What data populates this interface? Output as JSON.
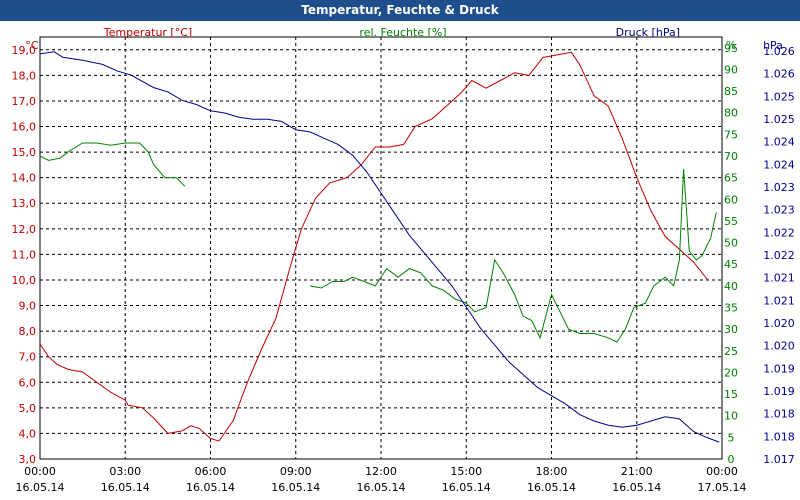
{
  "window": {
    "title": "Temperatur, Feuchte & Druck"
  },
  "chart_data": {
    "type": "line",
    "title": "Temperatur, Feuchte & Druck",
    "x_ticks": [
      {
        "time": "00:00",
        "date": "16.05.14",
        "h": 0
      },
      {
        "time": "03:00",
        "date": "16.05.14",
        "h": 3
      },
      {
        "time": "06:00",
        "date": "16.05.14",
        "h": 6
      },
      {
        "time": "09:00",
        "date": "16.05.14",
        "h": 9
      },
      {
        "time": "12:00",
        "date": "16.05.14",
        "h": 12
      },
      {
        "time": "15:00",
        "date": "16.05.14",
        "h": 15
      },
      {
        "time": "18:00",
        "date": "16.05.14",
        "h": 18
      },
      {
        "time": "21:00",
        "date": "16.05.14",
        "h": 21
      },
      {
        "time": "00:00",
        "date": "17.05.14",
        "h": 24
      }
    ],
    "x_range": [
      0,
      24
    ],
    "axes": {
      "temperature": {
        "label": "Temperatur [°C]",
        "unit": "°C",
        "color": "#c00000",
        "range": [
          3.0,
          19.5
        ],
        "ticks": [
          "19,0",
          "18,0",
          "17,0",
          "16,0",
          "15,0",
          "14,0",
          "13,0",
          "12,0",
          "11,0",
          "10,0",
          "9,0",
          "8,0",
          "7,0",
          "6,0",
          "5,0",
          "4,0",
          "3,0"
        ]
      },
      "humidity": {
        "label": "rel. Feuchte [%]",
        "unit": "%",
        "color": "#008000",
        "range": [
          0,
          97.5
        ],
        "ticks": [
          "95",
          "90",
          "85",
          "80",
          "75",
          "70",
          "65",
          "60",
          "55",
          "50",
          "45",
          "40",
          "35",
          "30",
          "25",
          "20",
          "15",
          "10",
          "5",
          "0"
        ]
      },
      "pressure": {
        "label": "Druck [hPa]",
        "unit": "hPa",
        "color": "#00008b",
        "range": [
          1.0165,
          1.0265
        ],
        "ticks": [
          "1.026",
          "1.026",
          "1.025",
          "1.025",
          "1.024",
          "1.024",
          "1.023",
          "1.023",
          "1.022",
          "1.022",
          "1.021",
          "1.021",
          "1.020",
          "1.020",
          "1.019",
          "1.019",
          "1.018",
          "1.018",
          "1.017"
        ]
      }
    },
    "series": [
      {
        "name": "Temperatur",
        "axis": "temperature",
        "points": [
          [
            0,
            7.5
          ],
          [
            0.3,
            7.0
          ],
          [
            0.6,
            6.7
          ],
          [
            1.0,
            6.5
          ],
          [
            1.5,
            6.4
          ],
          [
            2.0,
            6.0
          ],
          [
            2.5,
            5.6
          ],
          [
            3.0,
            5.3
          ],
          [
            3.1,
            5.1
          ],
          [
            3.6,
            5.0
          ],
          [
            4.0,
            4.6
          ],
          [
            4.5,
            4.0
          ],
          [
            5.0,
            4.1
          ],
          [
            5.3,
            4.3
          ],
          [
            5.6,
            4.2
          ],
          [
            6.0,
            3.8
          ],
          [
            6.3,
            3.7
          ],
          [
            6.8,
            4.5
          ],
          [
            7.3,
            6.0
          ],
          [
            7.8,
            7.3
          ],
          [
            8.3,
            8.5
          ],
          [
            8.8,
            10.5
          ],
          [
            9.2,
            12.0
          ],
          [
            9.7,
            13.2
          ],
          [
            10.2,
            13.8
          ],
          [
            10.8,
            14.0
          ],
          [
            11.3,
            14.5
          ],
          [
            11.8,
            15.2
          ],
          [
            12.3,
            15.2
          ],
          [
            12.8,
            15.3
          ],
          [
            13.2,
            16.0
          ],
          [
            13.8,
            16.3
          ],
          [
            14.3,
            16.8
          ],
          [
            14.8,
            17.3
          ],
          [
            15.2,
            17.8
          ],
          [
            15.7,
            17.5
          ],
          [
            16.2,
            17.8
          ],
          [
            16.7,
            18.1
          ],
          [
            17.2,
            18.0
          ],
          [
            17.7,
            18.7
          ],
          [
            18.2,
            18.8
          ],
          [
            18.7,
            18.9
          ],
          [
            19.0,
            18.4
          ],
          [
            19.5,
            17.2
          ],
          [
            20.0,
            16.8
          ],
          [
            20.5,
            15.5
          ],
          [
            21.0,
            14.0
          ],
          [
            21.5,
            12.7
          ],
          [
            22.0,
            11.7
          ],
          [
            22.5,
            11.2
          ],
          [
            23.0,
            10.7
          ],
          [
            23.5,
            10.0
          ]
        ]
      },
      {
        "name": "rel. Feuchte",
        "axis": "humidity",
        "segments": [
          [
            [
              0,
              70
            ],
            [
              0.3,
              69
            ],
            [
              0.7,
              69.5
            ],
            [
              1.0,
              71
            ],
            [
              1.5,
              73
            ],
            [
              2.0,
              73
            ],
            [
              2.5,
              72.5
            ],
            [
              3.0,
              73
            ],
            [
              3.5,
              73
            ],
            [
              3.8,
              71
            ],
            [
              4.0,
              68
            ],
            [
              4.4,
              65
            ],
            [
              4.8,
              65
            ],
            [
              5.1,
              63
            ]
          ],
          [
            [
              9.5,
              40
            ],
            [
              9.9,
              39.5
            ],
            [
              10.3,
              41
            ],
            [
              10.7,
              41
            ],
            [
              11.0,
              42
            ],
            [
              11.4,
              41
            ],
            [
              11.8,
              40
            ],
            [
              12.2,
              44
            ],
            [
              12.6,
              42
            ],
            [
              13.0,
              44
            ],
            [
              13.4,
              43
            ],
            [
              13.8,
              40
            ],
            [
              14.2,
              39
            ],
            [
              14.6,
              37
            ],
            [
              15.0,
              36
            ],
            [
              15.3,
              34
            ],
            [
              15.7,
              35
            ],
            [
              16.0,
              46
            ],
            [
              16.3,
              43
            ],
            [
              16.7,
              38
            ],
            [
              17.0,
              33
            ],
            [
              17.3,
              32
            ],
            [
              17.6,
              28
            ],
            [
              18.0,
              38
            ],
            [
              18.3,
              34
            ],
            [
              18.6,
              30
            ],
            [
              19.0,
              29
            ],
            [
              19.5,
              29
            ],
            [
              20.0,
              28
            ],
            [
              20.3,
              27
            ],
            [
              20.6,
              30
            ],
            [
              20.9,
              35
            ],
            [
              21.3,
              36
            ],
            [
              21.6,
              40
            ],
            [
              22.0,
              42
            ],
            [
              22.3,
              40
            ],
            [
              22.5,
              46
            ],
            [
              22.65,
              67
            ],
            [
              22.85,
              48
            ],
            [
              23.1,
              46
            ],
            [
              23.3,
              47
            ],
            [
              23.6,
              51
            ],
            [
              23.8,
              57
            ]
          ]
        ]
      },
      {
        "name": "Druck",
        "axis": "pressure",
        "points": [
          [
            0,
            1.0261
          ],
          [
            0.5,
            1.02615
          ],
          [
            0.8,
            1.02602
          ],
          [
            1.5,
            1.02595
          ],
          [
            2.2,
            1.02585
          ],
          [
            2.7,
            1.0257
          ],
          [
            3.2,
            1.0256
          ],
          [
            3.6,
            1.02545
          ],
          [
            4.0,
            1.0253
          ],
          [
            4.5,
            1.0252
          ],
          [
            5.0,
            1.025
          ],
          [
            5.5,
            1.0249
          ],
          [
            6.0,
            1.02475
          ],
          [
            6.5,
            1.0247
          ],
          [
            7.0,
            1.0246
          ],
          [
            7.5,
            1.02455
          ],
          [
            8.0,
            1.02455
          ],
          [
            8.5,
            1.0245
          ],
          [
            9.0,
            1.0243
          ],
          [
            9.5,
            1.02425
          ],
          [
            10.0,
            1.0241
          ],
          [
            10.5,
            1.02395
          ],
          [
            11.0,
            1.0237
          ],
          [
            11.5,
            1.0233
          ],
          [
            12.0,
            1.0228
          ],
          [
            12.5,
            1.0223
          ],
          [
            13.0,
            1.0218
          ],
          [
            13.5,
            1.0214
          ],
          [
            14.0,
            1.021
          ],
          [
            14.5,
            1.0206
          ],
          [
            15.0,
            1.0201
          ],
          [
            15.5,
            1.0196
          ],
          [
            16.0,
            1.0192
          ],
          [
            16.5,
            1.0188
          ],
          [
            17.0,
            1.0185
          ],
          [
            17.5,
            1.0182
          ],
          [
            18.0,
            1.018
          ],
          [
            18.5,
            1.0178
          ],
          [
            19.0,
            1.01755
          ],
          [
            19.5,
            1.0174
          ],
          [
            20.0,
            1.0173
          ],
          [
            20.5,
            1.01725
          ],
          [
            21.0,
            1.0173
          ],
          [
            21.5,
            1.0174
          ],
          [
            22.0,
            1.0175
          ],
          [
            22.5,
            1.01745
          ],
          [
            23.0,
            1.01715
          ],
          [
            23.5,
            1.017
          ],
          [
            23.9,
            1.0169
          ]
        ]
      }
    ]
  }
}
